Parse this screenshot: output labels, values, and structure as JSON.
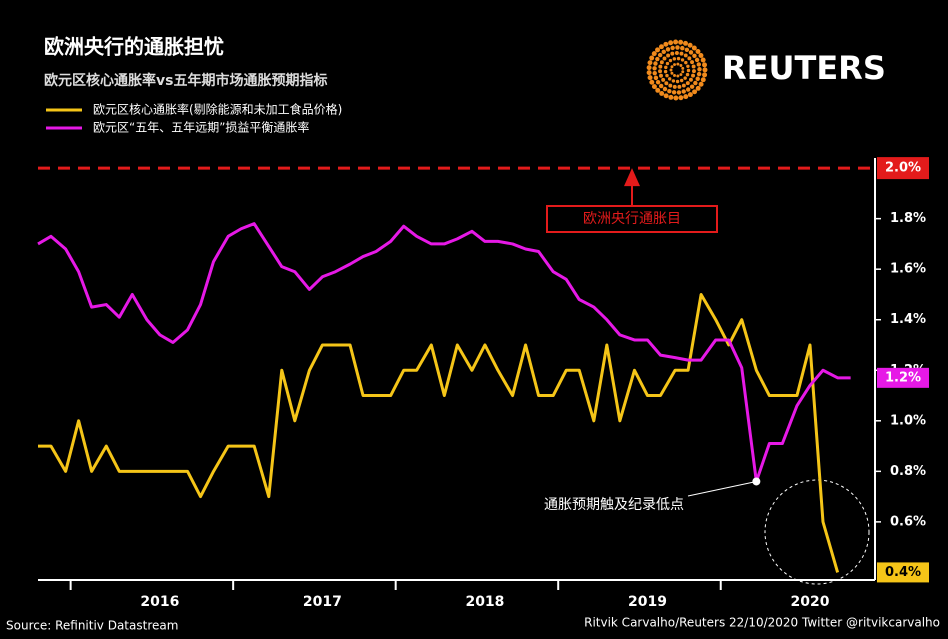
{
  "chart_data": {
    "type": "line",
    "title": "欧洲央行的通胀担忧",
    "subtitle": "欧元区核心通胀率vs五年期市场通胀预期指标",
    "logo": "REUTERS",
    "source": "Source: Refinitiv Datastream",
    "credit": "Ritvik Carvalho/Reuters 22/10/2020 Twitter @ritvikcarvalho",
    "x": [
      2015.75,
      2015.83,
      2015.92,
      2016.0,
      2016.08,
      2016.17,
      2016.25,
      2016.33,
      2016.42,
      2016.5,
      2016.58,
      2016.67,
      2016.75,
      2016.83,
      2016.92,
      2017.0,
      2017.08,
      2017.17,
      2017.25,
      2017.33,
      2017.42,
      2017.5,
      2017.58,
      2017.67,
      2017.75,
      2017.83,
      2017.92,
      2018.0,
      2018.08,
      2018.17,
      2018.25,
      2018.33,
      2018.42,
      2018.5,
      2018.58,
      2018.67,
      2018.75,
      2018.83,
      2018.92,
      2019.0,
      2019.08,
      2019.17,
      2019.25,
      2019.33,
      2019.42,
      2019.5,
      2019.58,
      2019.67,
      2019.75,
      2019.83,
      2019.92,
      2020.0,
      2020.08,
      2020.17,
      2020.25,
      2020.33,
      2020.42,
      2020.5,
      2020.58,
      2020.67,
      2020.75
    ],
    "xlim": [
      2015.75,
      2020.9
    ],
    "xticks": [
      {
        "value": 2016.5,
        "label": "2016"
      },
      {
        "value": 2017.5,
        "label": "2017"
      },
      {
        "value": 2018.5,
        "label": "2018"
      },
      {
        "value": 2019.5,
        "label": "2019"
      },
      {
        "value": 2020.5,
        "label": "2020"
      }
    ],
    "ylim": [
      0.37,
      2.04
    ],
    "yticks": [
      {
        "value": 0.6,
        "label": "0.6%"
      },
      {
        "value": 0.8,
        "label": "0.8%"
      },
      {
        "value": 1.0,
        "label": "1.0%"
      },
      {
        "value": 1.2,
        "label": "1.2%"
      },
      {
        "value": 1.4,
        "label": "1.4%"
      },
      {
        "value": 1.6,
        "label": "1.6%"
      },
      {
        "value": 1.8,
        "label": "1.8%"
      }
    ],
    "series": [
      {
        "name": "欧元区核心通胀率(剔除能源和未加工食品价格)",
        "color": "#f5c518",
        "values": [
          0.9,
          0.9,
          0.8,
          1.0,
          0.8,
          0.9,
          0.8,
          0.8,
          0.8,
          0.8,
          0.8,
          0.8,
          0.7,
          0.8,
          0.9,
          0.9,
          0.9,
          0.7,
          1.2,
          1.0,
          1.2,
          1.3,
          1.3,
          1.3,
          1.1,
          1.1,
          1.1,
          1.2,
          1.2,
          1.3,
          1.1,
          1.3,
          1.2,
          1.3,
          1.2,
          1.1,
          1.3,
          1.1,
          1.1,
          1.2,
          1.2,
          1.0,
          1.3,
          1.0,
          1.2,
          1.1,
          1.1,
          1.2,
          1.2,
          1.5,
          1.4,
          1.3,
          1.4,
          1.2,
          1.1,
          1.1,
          1.1,
          1.3,
          0.6,
          0.4,
          null
        ],
        "value_labels": [
          null,
          null,
          null,
          null,
          null,
          null,
          null,
          null,
          null,
          null,
          null,
          null,
          null,
          null,
          null,
          null,
          null,
          null,
          null,
          null,
          null,
          null,
          null,
          null,
          null,
          null,
          null,
          null,
          null,
          null,
          null,
          null,
          null,
          null,
          null,
          null,
          null,
          null,
          null,
          null,
          null,
          null,
          null,
          null,
          null,
          null,
          null,
          null,
          null,
          null,
          null,
          null,
          null,
          null,
          null,
          null,
          null,
          null,
          null,
          "0.4%",
          null
        ]
      },
      {
        "name": "欧元区“五年、五年远期”损益平衡通胀率",
        "color": "#e619e6",
        "values": [
          1.7,
          1.73,
          1.68,
          1.59,
          1.45,
          1.46,
          1.41,
          1.5,
          1.4,
          1.34,
          1.31,
          1.36,
          1.46,
          1.63,
          1.73,
          1.76,
          1.78,
          1.69,
          1.61,
          1.59,
          1.52,
          1.57,
          1.59,
          1.62,
          1.65,
          1.67,
          1.71,
          1.77,
          1.73,
          1.7,
          1.7,
          1.72,
          1.75,
          1.71,
          1.71,
          1.7,
          1.68,
          1.67,
          1.59,
          1.56,
          1.48,
          1.45,
          1.4,
          1.34,
          1.32,
          1.32,
          1.26,
          1.25,
          1.24,
          1.24,
          1.32,
          1.32,
          1.21,
          0.76,
          0.91,
          0.91,
          1.06,
          1.14,
          1.2,
          1.17,
          1.17
        ],
        "value_labels": [
          null,
          null,
          null,
          null,
          null,
          null,
          null,
          null,
          null,
          null,
          null,
          null,
          null,
          null,
          null,
          null,
          null,
          null,
          null,
          null,
          null,
          null,
          null,
          null,
          null,
          null,
          null,
          null,
          null,
          null,
          null,
          null,
          null,
          null,
          null,
          null,
          null,
          null,
          null,
          null,
          null,
          null,
          null,
          null,
          null,
          null,
          null,
          null,
          null,
          null,
          null,
          null,
          null,
          null,
          null,
          null,
          null,
          null,
          null,
          null,
          "1.2%"
        ]
      }
    ],
    "target": {
      "value": 2.0,
      "label": "2.0%",
      "text": "欧洲央行通胀目",
      "color": "#e31b1b"
    },
    "annotation": {
      "text": "通胀预期触及纪录低点",
      "series": 1,
      "index": 53
    }
  }
}
